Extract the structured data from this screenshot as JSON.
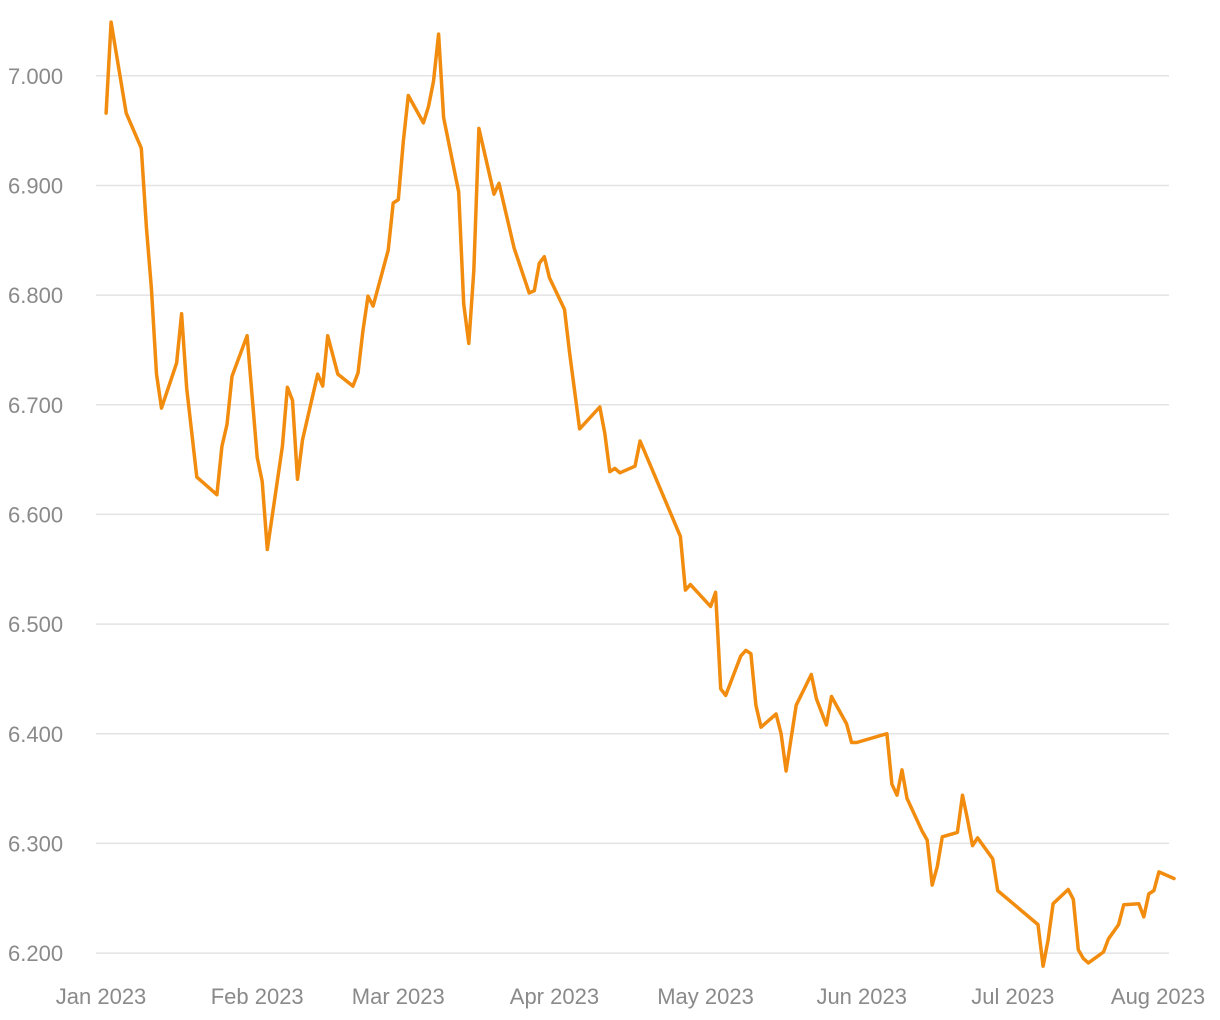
{
  "chart_data": {
    "type": "line",
    "title": "",
    "xlabel": "",
    "ylabel": "",
    "grid": true,
    "legend": "none",
    "ylim": [
      6.18,
      7.06
    ],
    "xlim": [
      "2022-12-31",
      "2023-08-01"
    ],
    "y_ticks": [
      6.2,
      6.3,
      6.4,
      6.5,
      6.6,
      6.7,
      6.8,
      6.9,
      7.0
    ],
    "y_tick_labels": [
      "6.200",
      "6.300",
      "6.400",
      "6.500",
      "6.600",
      "6.700",
      "6.800",
      "6.900",
      "7.000"
    ],
    "x_ticks": [
      "2023-01-01",
      "2023-02-01",
      "2023-03-01",
      "2023-04-01",
      "2023-05-01",
      "2023-06-01",
      "2023-07-01",
      "2023-08-01"
    ],
    "x_tick_labels": [
      "Jan 2023",
      "Feb 2023",
      "Mar 2023",
      "Apr 2023",
      "May 2023",
      "Jun 2023",
      "Jul 2023",
      "Aug 2023"
    ],
    "series": [
      {
        "color": "#f28c0f",
        "points": [
          [
            "2023-01-02",
            6.966
          ],
          [
            "2023-01-03",
            7.049
          ],
          [
            "2023-01-06",
            6.966
          ],
          [
            "2023-01-09",
            6.934
          ],
          [
            "2023-01-10",
            6.862
          ],
          [
            "2023-01-11",
            6.806
          ],
          [
            "2023-01-12",
            6.728
          ],
          [
            "2023-01-13",
            6.697
          ],
          [
            "2023-01-16",
            6.738
          ],
          [
            "2023-01-17",
            6.783
          ],
          [
            "2023-01-18",
            6.715
          ],
          [
            "2023-01-20",
            6.634
          ],
          [
            "2023-01-24",
            6.618
          ],
          [
            "2023-01-25",
            6.662
          ],
          [
            "2023-01-26",
            6.682
          ],
          [
            "2023-01-27",
            6.726
          ],
          [
            "2023-01-30",
            6.763
          ],
          [
            "2023-02-01",
            6.652
          ],
          [
            "2023-02-02",
            6.63
          ],
          [
            "2023-02-03",
            6.568
          ],
          [
            "2023-02-06",
            6.662
          ],
          [
            "2023-02-07",
            6.716
          ],
          [
            "2023-02-08",
            6.704
          ],
          [
            "2023-02-09",
            6.632
          ],
          [
            "2023-02-10",
            6.668
          ],
          [
            "2023-02-13",
            6.728
          ],
          [
            "2023-02-14",
            6.717
          ],
          [
            "2023-02-15",
            6.763
          ],
          [
            "2023-02-17",
            6.728
          ],
          [
            "2023-02-20",
            6.717
          ],
          [
            "2023-02-21",
            6.729
          ],
          [
            "2023-02-22",
            6.768
          ],
          [
            "2023-02-23",
            6.799
          ],
          [
            "2023-02-24",
            6.79
          ],
          [
            "2023-02-27",
            6.841
          ],
          [
            "2023-02-28",
            6.884
          ],
          [
            "2023-03-01",
            6.887
          ],
          [
            "2023-03-02",
            6.94
          ],
          [
            "2023-03-03",
            6.982
          ],
          [
            "2023-03-06",
            6.957
          ],
          [
            "2023-03-07",
            6.972
          ],
          [
            "2023-03-08",
            6.995
          ],
          [
            "2023-03-09",
            7.038
          ],
          [
            "2023-03-10",
            6.962
          ],
          [
            "2023-03-13",
            6.894
          ],
          [
            "2023-03-14",
            6.792
          ],
          [
            "2023-03-15",
            6.756
          ],
          [
            "2023-03-16",
            6.822
          ],
          [
            "2023-03-17",
            6.952
          ],
          [
            "2023-03-20",
            6.892
          ],
          [
            "2023-03-21",
            6.902
          ],
          [
            "2023-03-24",
            6.843
          ],
          [
            "2023-03-27",
            6.802
          ],
          [
            "2023-03-28",
            6.804
          ],
          [
            "2023-03-29",
            6.829
          ],
          [
            "2023-03-30",
            6.835
          ],
          [
            "2023-03-31",
            6.816
          ],
          [
            "2023-04-03",
            6.787
          ],
          [
            "2023-04-04",
            6.748
          ],
          [
            "2023-04-06",
            6.678
          ],
          [
            "2023-04-10",
            6.698
          ],
          [
            "2023-04-11",
            6.674
          ],
          [
            "2023-04-12",
            6.639
          ],
          [
            "2023-04-13",
            6.642
          ],
          [
            "2023-04-14",
            6.638
          ],
          [
            "2023-04-17",
            6.644
          ],
          [
            "2023-04-18",
            6.667
          ],
          [
            "2023-04-26",
            6.58
          ],
          [
            "2023-04-27",
            6.531
          ],
          [
            "2023-04-28",
            6.536
          ],
          [
            "2023-05-02",
            6.516
          ],
          [
            "2023-05-03",
            6.529
          ],
          [
            "2023-05-04",
            6.441
          ],
          [
            "2023-05-05",
            6.435
          ],
          [
            "2023-05-08",
            6.471
          ],
          [
            "2023-05-09",
            6.476
          ],
          [
            "2023-05-10",
            6.473
          ],
          [
            "2023-05-11",
            6.426
          ],
          [
            "2023-05-12",
            6.406
          ],
          [
            "2023-05-15",
            6.418
          ],
          [
            "2023-05-16",
            6.4
          ],
          [
            "2023-05-17",
            6.366
          ],
          [
            "2023-05-19",
            6.426
          ],
          [
            "2023-05-22",
            6.454
          ],
          [
            "2023-05-23",
            6.432
          ],
          [
            "2023-05-25",
            6.408
          ],
          [
            "2023-05-26",
            6.434
          ],
          [
            "2023-05-29",
            6.409
          ],
          [
            "2023-05-30",
            6.392
          ],
          [
            "2023-05-31",
            6.392
          ],
          [
            "2023-06-06",
            6.4
          ],
          [
            "2023-06-07",
            6.354
          ],
          [
            "2023-06-08",
            6.344
          ],
          [
            "2023-06-09",
            6.367
          ],
          [
            "2023-06-10",
            6.341
          ],
          [
            "2023-06-13",
            6.311
          ],
          [
            "2023-06-14",
            6.303
          ],
          [
            "2023-06-15",
            6.262
          ],
          [
            "2023-06-16",
            6.279
          ],
          [
            "2023-06-17",
            6.306
          ],
          [
            "2023-06-20",
            6.31
          ],
          [
            "2023-06-21",
            6.344
          ],
          [
            "2023-06-22",
            6.322
          ],
          [
            "2023-06-23",
            6.298
          ],
          [
            "2023-06-24",
            6.305
          ],
          [
            "2023-06-27",
            6.286
          ],
          [
            "2023-06-28",
            6.257
          ],
          [
            "2023-07-06",
            6.226
          ],
          [
            "2023-07-07",
            6.188
          ],
          [
            "2023-07-08",
            6.212
          ],
          [
            "2023-07-09",
            6.245
          ],
          [
            "2023-07-12",
            6.258
          ],
          [
            "2023-07-13",
            6.249
          ],
          [
            "2023-07-14",
            6.203
          ],
          [
            "2023-07-15",
            6.195
          ],
          [
            "2023-07-16",
            6.191
          ],
          [
            "2023-07-19",
            6.201
          ],
          [
            "2023-07-20",
            6.213
          ],
          [
            "2023-07-22",
            6.226
          ],
          [
            "2023-07-23",
            6.244
          ],
          [
            "2023-07-26",
            6.245
          ],
          [
            "2023-07-27",
            6.233
          ],
          [
            "2023-07-28",
            6.254
          ],
          [
            "2023-07-29",
            6.257
          ],
          [
            "2023-07-30",
            6.274
          ],
          [
            "2023-08-02",
            6.268
          ]
        ]
      }
    ]
  }
}
